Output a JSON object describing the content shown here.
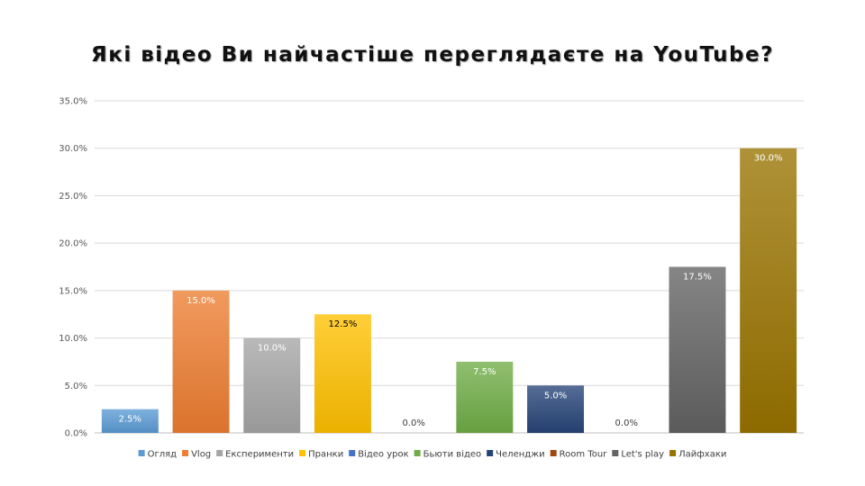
{
  "title": "Які відео Ви найчастіше переглядаєте на YouTube?",
  "chart_data": {
    "type": "bar",
    "title": "Які відео Ви найчастіше переглядаєте на YouTube?",
    "xlabel": "",
    "ylabel": "",
    "ylim": [
      0,
      35
    ],
    "yticks": [
      0,
      5,
      10,
      15,
      20,
      25,
      30,
      35
    ],
    "ytick_labels": [
      "0.0%",
      "5.0%",
      "10.0%",
      "15.0%",
      "20.0%",
      "25.0%",
      "30.0%",
      "35.0%"
    ],
    "grid": true,
    "legend_position": "bottom",
    "categories": [
      "Огляд",
      "Vlog",
      "Експерименти",
      "Пранки",
      "Відео урок",
      "Бьюти відео",
      "Челенджи",
      "Room Tour",
      "Let's play",
      "Лайфхаки"
    ],
    "values": [
      2.5,
      15.0,
      10.0,
      12.5,
      0.0,
      7.5,
      5.0,
      0.0,
      17.5,
      30.0
    ],
    "value_labels": [
      "2.5%",
      "15.0%",
      "10.0%",
      "12.5%",
      "0.0%",
      "7.5%",
      "5.0%",
      "0.0%",
      "17.5%",
      "30.0%"
    ],
    "colors": [
      "#5b9bd5",
      "#ed7d31",
      "#a5a5a5",
      "#ffc000",
      "#4472c4",
      "#70ad47",
      "#264478",
      "#9e480e",
      "#636363",
      "#997300"
    ],
    "label_colors": [
      "#ffffff",
      "#ffffff",
      "#ffffff",
      "#000000",
      "#404040",
      "#ffffff",
      "#ffffff",
      "#404040",
      "#ffffff",
      "#ffffff"
    ]
  }
}
